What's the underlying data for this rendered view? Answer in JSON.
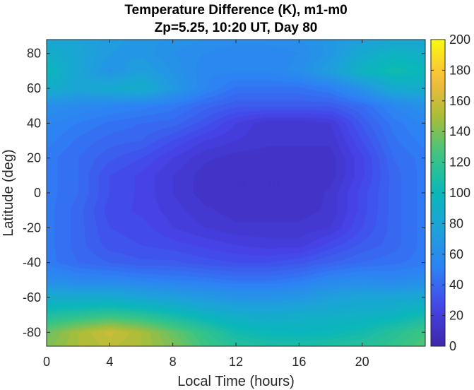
{
  "chart_data": {
    "type": "heatmap",
    "title": "Temperature Difference (K), m1-m0",
    "subtitle": "Zp=5.25, 10:20 UT, Day 80",
    "xlabel": "Local Time (hours)",
    "ylabel": "Latitude (deg)",
    "xlim": [
      0,
      24
    ],
    "ylim": [
      -88,
      88
    ],
    "xticks": [
      0,
      4,
      8,
      12,
      16,
      20
    ],
    "yticks": [
      -80,
      -60,
      -40,
      -20,
      0,
      20,
      40,
      60,
      80
    ],
    "colorbar": {
      "min": 0,
      "max": 200,
      "ticks": [
        0,
        20,
        40,
        60,
        80,
        100,
        120,
        140,
        160,
        180,
        200
      ],
      "colormap": "parula"
    },
    "z_description": "Temperature difference values in K per (local time, latitude)",
    "latitudes": [
      -88,
      -80,
      -70,
      -60,
      -50,
      -40,
      -30,
      -20,
      -10,
      0,
      10,
      20,
      30,
      40,
      50,
      60,
      70,
      80,
      88
    ],
    "local_times": [
      0,
      2,
      4,
      6,
      8,
      10,
      12,
      14,
      16,
      18,
      20,
      22,
      24
    ],
    "values": [
      [
        140,
        150,
        155,
        150,
        140,
        125,
        115,
        110,
        110,
        112,
        115,
        120,
        130
      ],
      [
        135,
        150,
        160,
        150,
        135,
        120,
        105,
        100,
        98,
        100,
        105,
        115,
        125
      ],
      [
        110,
        115,
        120,
        115,
        105,
        95,
        88,
        85,
        88,
        90,
        92,
        95,
        105
      ],
      [
        85,
        85,
        85,
        80,
        75,
        70,
        65,
        65,
        68,
        75,
        80,
        80,
        85
      ],
      [
        60,
        55,
        55,
        52,
        50,
        48,
        45,
        45,
        48,
        55,
        58,
        55,
        60
      ],
      [
        48,
        42,
        38,
        35,
        35,
        32,
        30,
        30,
        33,
        38,
        42,
        45,
        48
      ],
      [
        48,
        40,
        32,
        30,
        28,
        25,
        22,
        20,
        20,
        28,
        35,
        40,
        48
      ],
      [
        48,
        40,
        30,
        28,
        22,
        18,
        15,
        15,
        15,
        18,
        30,
        40,
        48
      ],
      [
        48,
        40,
        28,
        25,
        20,
        15,
        12,
        12,
        12,
        15,
        28,
        40,
        48
      ],
      [
        48,
        42,
        30,
        25,
        18,
        12,
        10,
        10,
        10,
        15,
        28,
        40,
        48
      ],
      [
        48,
        42,
        30,
        25,
        18,
        12,
        10,
        10,
        10,
        12,
        25,
        40,
        48
      ],
      [
        48,
        42,
        35,
        30,
        22,
        15,
        12,
        12,
        12,
        12,
        25,
        42,
        48
      ],
      [
        52,
        45,
        40,
        38,
        30,
        22,
        18,
        15,
        15,
        15,
        30,
        45,
        52
      ],
      [
        55,
        50,
        45,
        42,
        40,
        32,
        22,
        15,
        15,
        18,
        35,
        48,
        55
      ],
      [
        62,
        58,
        55,
        52,
        48,
        40,
        35,
        35,
        35,
        35,
        42,
        55,
        62
      ],
      [
        90,
        80,
        85,
        90,
        70,
        55,
        45,
        45,
        45,
        50,
        65,
        85,
        90
      ],
      [
        100,
        80,
        65,
        75,
        65,
        55,
        55,
        55,
        60,
        75,
        95,
        105,
        100
      ],
      [
        90,
        80,
        70,
        68,
        62,
        58,
        55,
        55,
        58,
        68,
        85,
        95,
        90
      ],
      [
        80,
        78,
        72,
        68,
        65,
        62,
        60,
        60,
        62,
        68,
        75,
        80,
        80
      ]
    ]
  }
}
